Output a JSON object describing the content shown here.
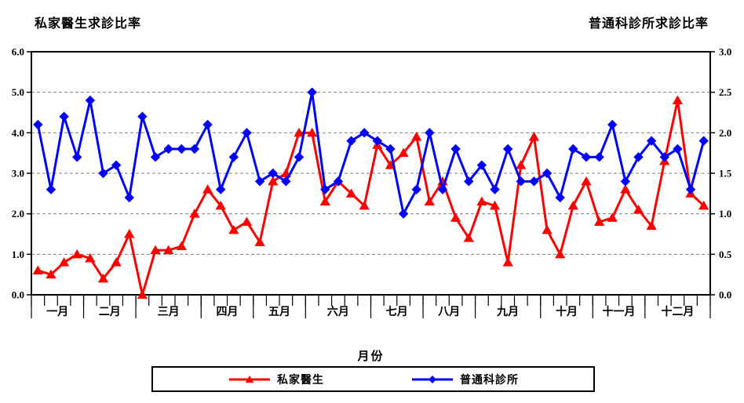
{
  "chart_data": {
    "type": "line",
    "left_axis_title": "私家醫生求診比率",
    "right_axis_title": "普通科診所求診比率",
    "x_axis_title": "月份",
    "left_axis": {
      "min": 0,
      "max": 6,
      "step": 1,
      "decimals": 1
    },
    "right_axis": {
      "min": 0,
      "max": 3,
      "step": 0.5,
      "decimals": 1
    },
    "grid": "horizontal-dashed",
    "grid_color": "#7f7f7f",
    "legend_position": "bottom",
    "months": [
      "一月",
      "二月",
      "三月",
      "四月",
      "五月",
      "六月",
      "七月",
      "八月",
      "九月",
      "十月",
      "十一月",
      "十二月"
    ],
    "weeks_per_month": [
      4,
      4,
      5,
      4,
      4,
      5,
      4,
      4,
      5,
      4,
      4,
      5
    ],
    "series": [
      {
        "name": "私家醫生",
        "color": "#FF0000",
        "marker": "triangle",
        "axis": "left",
        "values": [
          0.6,
          0.5,
          0.8,
          1.0,
          0.9,
          0.4,
          0.8,
          1.5,
          0.0,
          1.1,
          1.1,
          1.2,
          2.0,
          2.6,
          2.2,
          1.6,
          1.8,
          1.3,
          2.8,
          3.0,
          4.0,
          4.0,
          2.3,
          2.8,
          2.5,
          2.2,
          3.7,
          3.2,
          3.5,
          3.9,
          2.3,
          2.8,
          1.9,
          1.4,
          2.3,
          2.2,
          0.8,
          3.2,
          3.9,
          1.6,
          1.0,
          2.2,
          2.8,
          1.8,
          1.9,
          2.6,
          2.1,
          1.7,
          3.3,
          4.8,
          2.5,
          2.2
        ]
      },
      {
        "name": "普通科診所",
        "color": "#0000FF",
        "marker": "diamond",
        "axis": "right",
        "values": [
          2.1,
          1.3,
          2.2,
          1.7,
          2.4,
          1.5,
          1.6,
          1.2,
          2.2,
          1.7,
          1.8,
          1.8,
          1.8,
          2.1,
          1.3,
          1.7,
          2.0,
          1.4,
          1.5,
          1.4,
          1.7,
          2.5,
          1.3,
          1.4,
          1.9,
          2.0,
          1.9,
          1.8,
          1.0,
          1.3,
          2.0,
          1.3,
          1.8,
          1.4,
          1.6,
          1.3,
          1.8,
          1.4,
          1.4,
          1.5,
          1.2,
          1.8,
          1.7,
          1.7,
          2.1,
          1.4,
          1.7,
          1.9,
          1.7,
          1.8,
          1.3,
          1.9
        ]
      }
    ]
  }
}
